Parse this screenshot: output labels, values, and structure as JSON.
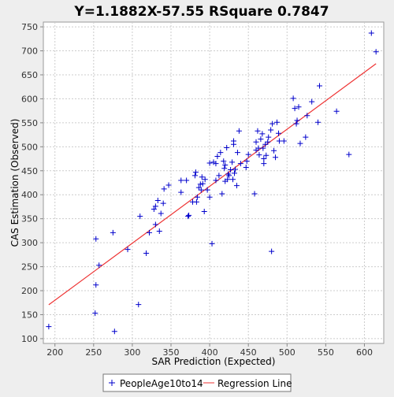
{
  "chart_data": {
    "type": "scatter",
    "title": "Y=1.1882X-57.55    RSquare 0.7847",
    "xlabel": "SAR Prediction (Expected)",
    "ylabel": "CAS Estimation (Observed)",
    "xlim": [
      185,
      625
    ],
    "ylim": [
      90,
      760
    ],
    "xticks": [
      200,
      250,
      300,
      350,
      400,
      450,
      500,
      550,
      600
    ],
    "yticks": [
      100,
      150,
      200,
      250,
      300,
      350,
      400,
      450,
      500,
      550,
      600,
      650,
      700,
      750
    ],
    "grid": true,
    "legend_position": "bottom-center",
    "series": [
      {
        "name": "PeopleAge10to14",
        "kind": "points",
        "marker": "plus",
        "color": "#0000cc",
        "points": [
          [
            192,
            125
          ],
          [
            252,
            153
          ],
          [
            253,
            212
          ],
          [
            253,
            308
          ],
          [
            257,
            253
          ],
          [
            275,
            321
          ],
          [
            277,
            115
          ],
          [
            294,
            286
          ],
          [
            308,
            171
          ],
          [
            310,
            355
          ],
          [
            318,
            278
          ],
          [
            322,
            321
          ],
          [
            328,
            370
          ],
          [
            330,
            338
          ],
          [
            330,
            376
          ],
          [
            333,
            388
          ],
          [
            335,
            324
          ],
          [
            337,
            361
          ],
          [
            340,
            382
          ],
          [
            341,
            412
          ],
          [
            347,
            420
          ],
          [
            363,
            405
          ],
          [
            363,
            430
          ],
          [
            370,
            430
          ],
          [
            372,
            355
          ],
          [
            373,
            357
          ],
          [
            378,
            385
          ],
          [
            381,
            440
          ],
          [
            382,
            447
          ],
          [
            383,
            385
          ],
          [
            384,
            395
          ],
          [
            386,
            415
          ],
          [
            388,
            422
          ],
          [
            389,
            410
          ],
          [
            390,
            437
          ],
          [
            391,
            423
          ],
          [
            393,
            365
          ],
          [
            394,
            432
          ],
          [
            397,
            410
          ],
          [
            400,
            395
          ],
          [
            400,
            466
          ],
          [
            403,
            298
          ],
          [
            405,
            468
          ],
          [
            408,
            430
          ],
          [
            408,
            465
          ],
          [
            410,
            480
          ],
          [
            412,
            440
          ],
          [
            414,
            488
          ],
          [
            416,
            402
          ],
          [
            418,
            470
          ],
          [
            419,
            455
          ],
          [
            420,
            428
          ],
          [
            420,
            462
          ],
          [
            422,
            498
          ],
          [
            423,
            432
          ],
          [
            424,
            443
          ],
          [
            425,
            440
          ],
          [
            427,
            452
          ],
          [
            429,
            468
          ],
          [
            430,
            432
          ],
          [
            431,
            505
          ],
          [
            431,
            512
          ],
          [
            432,
            445
          ],
          [
            433,
            453
          ],
          [
            435,
            419
          ],
          [
            436,
            488
          ],
          [
            438,
            533
          ],
          [
            440,
            465
          ],
          [
            447,
            457
          ],
          [
            448,
            470
          ],
          [
            450,
            484
          ],
          [
            458,
            402
          ],
          [
            460,
            493
          ],
          [
            460,
            510
          ],
          [
            462,
            533
          ],
          [
            463,
            497
          ],
          [
            464,
            483
          ],
          [
            466,
            516
          ],
          [
            468,
            527
          ],
          [
            469,
            497
          ],
          [
            470,
            465
          ],
          [
            470,
            475
          ],
          [
            472,
            505
          ],
          [
            473,
            482
          ],
          [
            475,
            510
          ],
          [
            476,
            520
          ],
          [
            479,
            535
          ],
          [
            480,
            282
          ],
          [
            481,
            548
          ],
          [
            483,
            492
          ],
          [
            485,
            478
          ],
          [
            487,
            551
          ],
          [
            489,
            528
          ],
          [
            490,
            512
          ],
          [
            496,
            512
          ],
          [
            508,
            601
          ],
          [
            510,
            580
          ],
          [
            512,
            548
          ],
          [
            513,
            555
          ],
          [
            515,
            583
          ],
          [
            517,
            507
          ],
          [
            524,
            520
          ],
          [
            526,
            565
          ],
          [
            532,
            594
          ],
          [
            540,
            551
          ],
          [
            542,
            627
          ],
          [
            564,
            574
          ],
          [
            580,
            484
          ],
          [
            609,
            737
          ],
          [
            615,
            698
          ]
        ]
      },
      {
        "name": "Regression Line",
        "kind": "line",
        "color": "#ee3333",
        "points": [
          [
            192,
            170.6
          ],
          [
            615,
            673.2
          ]
        ]
      }
    ]
  }
}
